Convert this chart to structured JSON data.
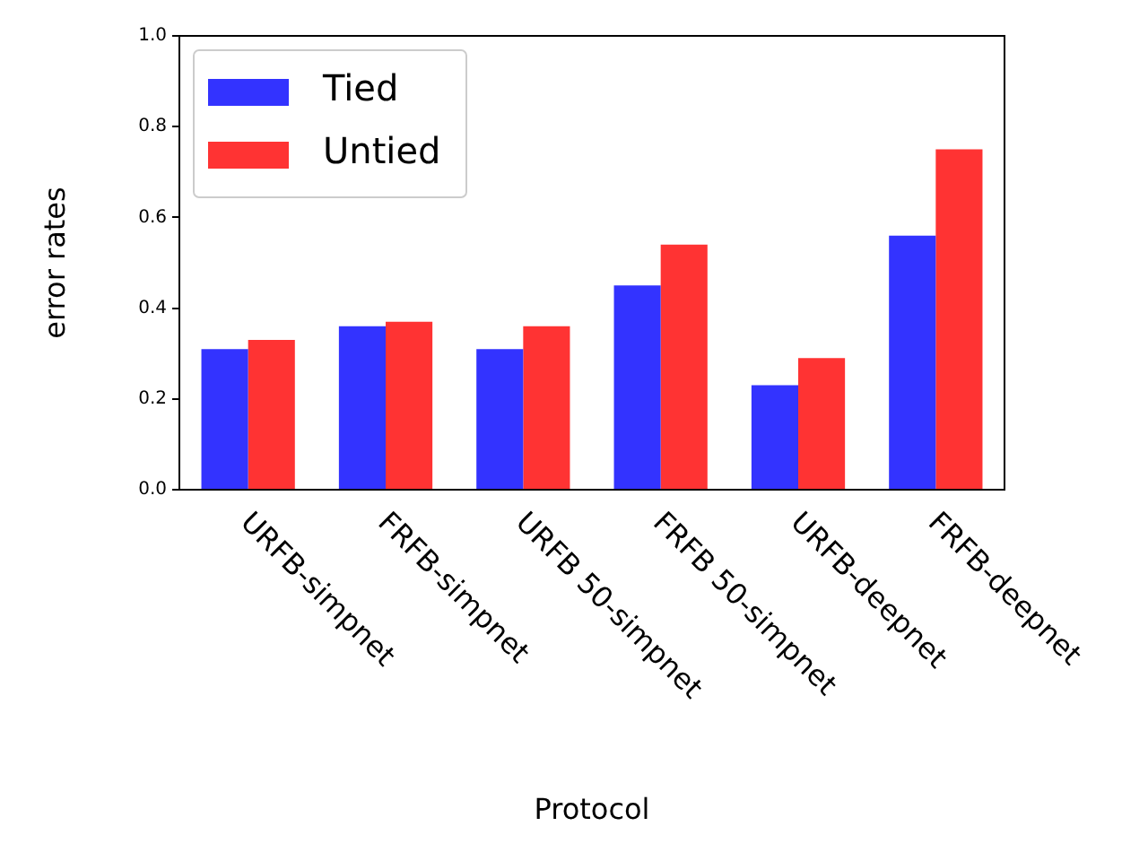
{
  "chart_data": {
    "type": "bar",
    "xlabel": "Protocol",
    "ylabel": "error rates",
    "categories": [
      "URFB-simpnet",
      "FRFB-simpnet",
      "URFB 50-simpnet",
      "FRFB 50-simpnet",
      "URFB-deepnet",
      "FRFB-deepnet"
    ],
    "series": [
      {
        "name": "Tied",
        "color": "#3333ff",
        "values": [
          0.31,
          0.36,
          0.31,
          0.45,
          0.23,
          0.56
        ]
      },
      {
        "name": "Untied",
        "color": "#ff3333",
        "values": [
          0.33,
          0.37,
          0.36,
          0.54,
          0.29,
          0.75
        ]
      }
    ],
    "ylim": [
      0,
      1
    ],
    "yticks": [
      {
        "value": 0,
        "label": "0.0"
      },
      {
        "value": 0.2,
        "label": "0.2"
      },
      {
        "value": 0.4,
        "label": "0.4"
      },
      {
        "value": 0.6,
        "label": "0.6"
      },
      {
        "value": 0.8,
        "label": "0.8"
      },
      {
        "value": 1,
        "label": "1.0"
      }
    ],
    "grid": false,
    "legend": "top left"
  }
}
